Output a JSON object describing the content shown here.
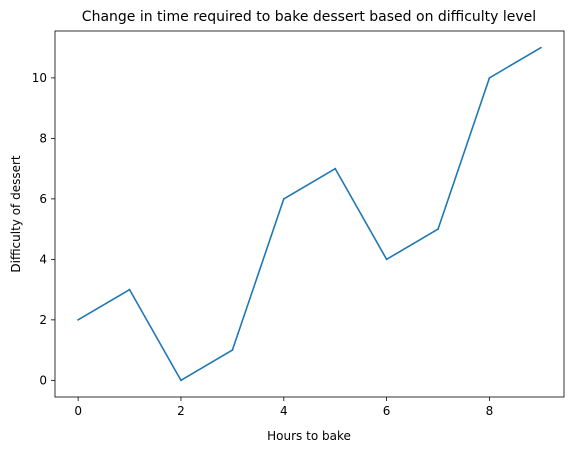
{
  "chart_data": {
    "type": "line",
    "title": "Change in time required to bake dessert based on difficulty level",
    "xlabel": "Hours to bake",
    "ylabel": "Difficulty of dessert",
    "x": [
      0,
      1,
      2,
      3,
      4,
      5,
      6,
      7,
      8,
      9
    ],
    "series": [
      {
        "values": [
          2,
          3,
          0,
          1,
          6,
          7,
          4,
          5,
          10,
          11
        ],
        "color": "#1f77b4"
      }
    ],
    "xlim": [
      -0.45,
      9.45
    ],
    "ylim": [
      -0.55,
      11.55
    ],
    "xticks": [
      0,
      2,
      4,
      6,
      8
    ],
    "yticks": [
      0,
      2,
      4,
      6,
      8,
      10
    ],
    "grid": false,
    "legend": "none"
  }
}
